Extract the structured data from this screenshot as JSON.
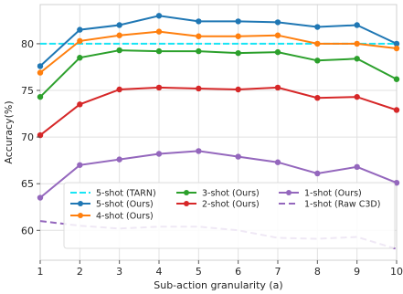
{
  "chart_data": {
    "type": "line",
    "xlabel": "Sub-action granularity (a)",
    "ylabel": "Accuracy(%)",
    "x": [
      1,
      2,
      3,
      4,
      5,
      6,
      7,
      8,
      9,
      10
    ],
    "xlim": [
      1,
      10
    ],
    "ylim": [
      56.8,
      84.2
    ],
    "xticks": [
      "1",
      "2",
      "3",
      "4",
      "5",
      "6",
      "7",
      "8",
      "9",
      "10"
    ],
    "yticks": [
      60,
      65,
      70,
      75,
      80
    ],
    "grid": true,
    "legend_position": "lower-center",
    "series": [
      {
        "name": "5-shot (TARN)",
        "color": "#17e5f5",
        "style": "dashed-baseline",
        "values": [
          80,
          80,
          80,
          80,
          80,
          80,
          80,
          80,
          80,
          80
        ]
      },
      {
        "name": "5-shot (Ours)",
        "color": "#1f77b4",
        "style": "solid-marker",
        "values": [
          77.6,
          81.5,
          82.0,
          83.0,
          82.4,
          82.4,
          82.3,
          81.8,
          82.0,
          80.0
        ]
      },
      {
        "name": "4-shot (Ours)",
        "color": "#ff7f0e",
        "style": "solid-marker",
        "values": [
          76.9,
          80.3,
          80.9,
          81.3,
          80.8,
          80.8,
          80.9,
          80.0,
          80.0,
          79.5
        ]
      },
      {
        "name": "3-shot (Ours)",
        "color": "#2ca02c",
        "style": "solid-marker",
        "values": [
          74.3,
          78.5,
          79.3,
          79.2,
          79.2,
          79.0,
          79.1,
          78.2,
          78.4,
          76.2
        ]
      },
      {
        "name": "2-shot (Ours)",
        "color": "#d62728",
        "style": "solid-marker",
        "values": [
          70.2,
          73.5,
          75.1,
          75.3,
          75.2,
          75.1,
          75.3,
          74.2,
          74.3,
          72.9
        ]
      },
      {
        "name": "1-shot (Ours)",
        "color": "#9467bd",
        "style": "solid-marker",
        "values": [
          63.5,
          67.0,
          67.6,
          68.2,
          68.5,
          67.9,
          67.3,
          66.1,
          66.8,
          65.1
        ]
      },
      {
        "name": "1-shot (Raw C3D)",
        "color": "#9467bd",
        "style": "dashed",
        "values": [
          61.0,
          60.5,
          60.2,
          60.4,
          60.4,
          60.0,
          59.2,
          59.1,
          59.3,
          58.0
        ]
      }
    ]
  }
}
